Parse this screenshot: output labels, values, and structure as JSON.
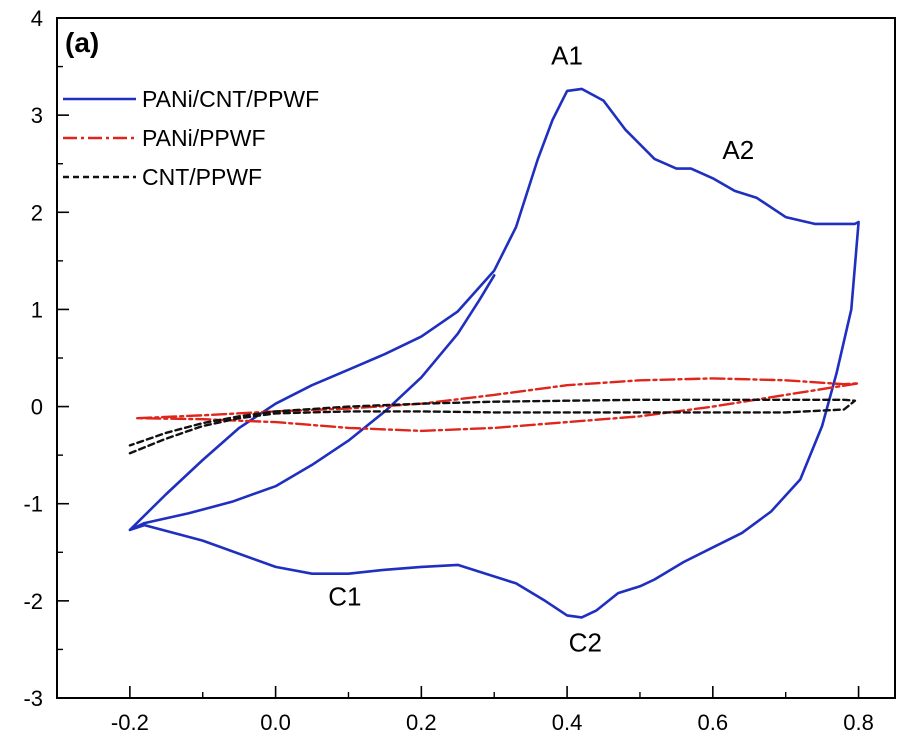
{
  "chart_data": {
    "type": "line",
    "panel_label": "(a)",
    "xlabel": "",
    "ylabel": "",
    "xlim": [
      -0.3,
      0.85
    ],
    "ylim": [
      -3,
      4
    ],
    "x_ticks": [
      -0.2,
      0.0,
      0.2,
      0.4,
      0.6,
      0.8
    ],
    "x_tick_labels": [
      "-0.2",
      "0.0",
      "0.2",
      "0.4",
      "0.6",
      "0.8"
    ],
    "y_ticks": [
      -3,
      -2,
      -1,
      0,
      1,
      2,
      3,
      4
    ],
    "y_tick_labels": [
      "-3",
      "-2",
      "-1",
      "0",
      "1",
      "2",
      "3",
      "4"
    ],
    "legend_position": "top-left",
    "series": [
      {
        "name": "PANi/CNT/PPWF",
        "color": "#1f2fbf",
        "style": "solid",
        "x": [
          -0.2,
          -0.15,
          -0.1,
          -0.05,
          0.0,
          0.05,
          0.1,
          0.15,
          0.2,
          0.25,
          0.3,
          0.33,
          0.36,
          0.38,
          0.4,
          0.42,
          0.45,
          0.48,
          0.52,
          0.55,
          0.57,
          0.6,
          0.63,
          0.66,
          0.7,
          0.74,
          0.78,
          0.795,
          0.8,
          0.79,
          0.77,
          0.75,
          0.72,
          0.68,
          0.64,
          0.6,
          0.56,
          0.52,
          0.5,
          0.47,
          0.44,
          0.42,
          0.4,
          0.37,
          0.33,
          0.25,
          0.2,
          0.15,
          0.1,
          0.05,
          0.0,
          -0.1,
          -0.18,
          -0.2,
          -0.18,
          -0.12,
          -0.06,
          0.0,
          0.05,
          0.1,
          0.15,
          0.2,
          0.25,
          0.28,
          0.3
        ],
        "y": [
          -1.27,
          -0.9,
          -0.55,
          -0.22,
          0.03,
          0.22,
          0.38,
          0.54,
          0.72,
          0.98,
          1.4,
          1.85,
          2.55,
          2.95,
          3.25,
          3.27,
          3.15,
          2.85,
          2.55,
          2.45,
          2.45,
          2.35,
          2.22,
          2.15,
          1.95,
          1.88,
          1.88,
          1.88,
          1.9,
          1.0,
          0.35,
          -0.2,
          -0.75,
          -1.08,
          -1.3,
          -1.45,
          -1.6,
          -1.78,
          -1.85,
          -1.92,
          -2.1,
          -2.17,
          -2.15,
          -2.0,
          -1.82,
          -1.63,
          -1.65,
          -1.68,
          -1.72,
          -1.72,
          -1.65,
          -1.38,
          -1.22,
          -1.27,
          -1.2,
          -1.1,
          -0.98,
          -0.82,
          -0.6,
          -0.35,
          -0.05,
          0.3,
          0.75,
          1.1,
          1.35
        ]
      },
      {
        "name": "PANi/PPWF",
        "color": "#e0251b",
        "style": "dash-dot",
        "x": [
          -0.19,
          -0.1,
          0.0,
          0.1,
          0.2,
          0.3,
          0.4,
          0.5,
          0.6,
          0.7,
          0.78,
          0.8,
          0.7,
          0.6,
          0.5,
          0.4,
          0.3,
          0.2,
          0.1,
          0.0,
          -0.1,
          -0.19
        ],
        "y": [
          -0.12,
          -0.09,
          -0.05,
          -0.02,
          0.03,
          0.12,
          0.22,
          0.27,
          0.29,
          0.27,
          0.23,
          0.24,
          0.12,
          0.0,
          -0.1,
          -0.16,
          -0.22,
          -0.25,
          -0.22,
          -0.16,
          -0.13,
          -0.12
        ]
      },
      {
        "name": "CNT/PPWF",
        "color": "#111111",
        "style": "dashed",
        "x": [
          -0.2,
          -0.15,
          -0.1,
          -0.05,
          0.0,
          0.1,
          0.2,
          0.3,
          0.4,
          0.5,
          0.6,
          0.7,
          0.78,
          0.795,
          0.78,
          0.7,
          0.6,
          0.5,
          0.4,
          0.3,
          0.2,
          0.1,
          0.0,
          -0.05,
          -0.1,
          -0.15,
          -0.2
        ],
        "y": [
          -0.48,
          -0.33,
          -0.2,
          -0.12,
          -0.07,
          -0.05,
          -0.05,
          -0.06,
          -0.06,
          -0.06,
          -0.06,
          -0.06,
          -0.03,
          0.06,
          0.07,
          0.07,
          0.07,
          0.07,
          0.06,
          0.05,
          0.03,
          0.0,
          -0.05,
          -0.1,
          -0.17,
          -0.27,
          -0.4
        ]
      }
    ],
    "annotations": [
      {
        "text": "A1",
        "x": 0.4,
        "y": 3.52
      },
      {
        "text": "A2",
        "x": 0.635,
        "y": 2.55
      },
      {
        "text": "C1",
        "x": 0.095,
        "y": -2.05
      },
      {
        "text": "C2",
        "x": 0.425,
        "y": -2.52
      }
    ]
  }
}
